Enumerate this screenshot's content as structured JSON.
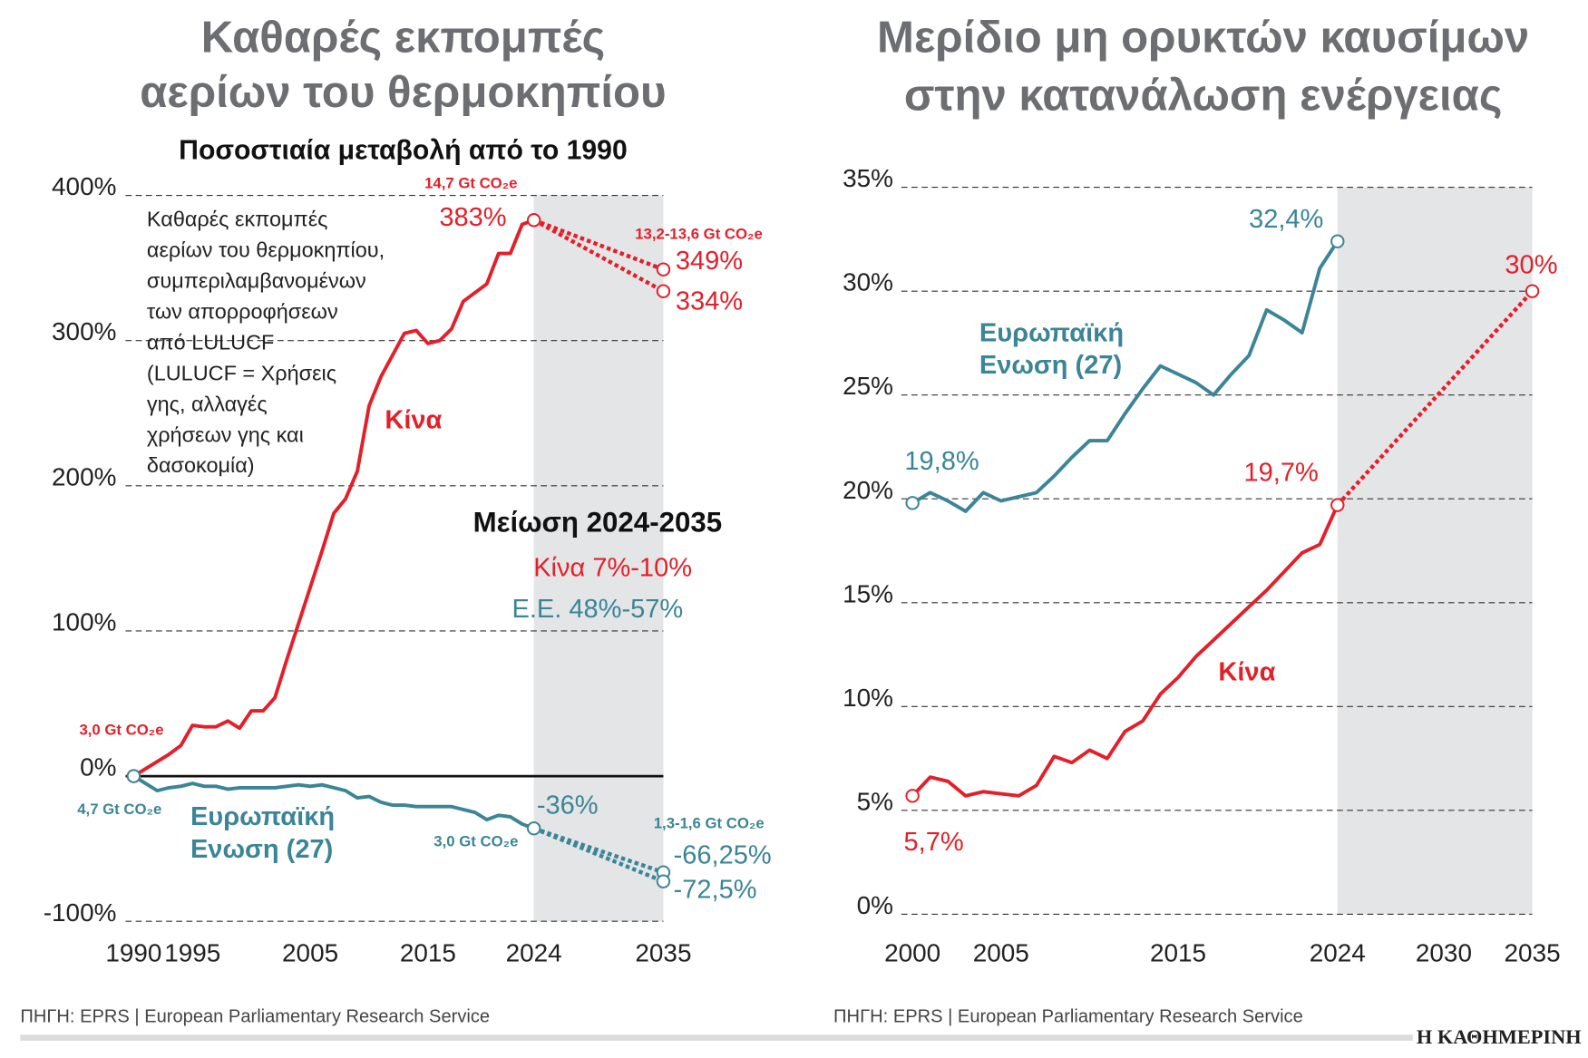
{
  "chart_data": [
    {
      "type": "line",
      "title": [
        "Καθαρές εκπομπές",
        "αερίων του θερμοκηπίου"
      ],
      "subtitle": "Ποσοστιαία μεταβολή από το 1990",
      "note": [
        "Καθαρές εκπομπές",
        "αερίων του θερμοκηπίου,",
        "συμπεριλαμβανομένων",
        "των απορροφήσεων",
        "από LULUCF",
        "(LULUCF = Χρήσεις",
        "γης, αλλαγές",
        "χρήσεων γης και",
        "δασοκομία)"
      ],
      "annotations": [
        {
          "text": "14,7 Gt CO₂e",
          "color": "#e3202a"
        },
        {
          "text": "13,2-13,6 Gt CO₂e",
          "color": "#e3202a"
        },
        {
          "text": "3,0 Gt CO₂e",
          "color": "#e3202a"
        },
        {
          "text": "4,7 Gt CO₂e",
          "color": "#3b8596"
        },
        {
          "text": "3,0 Gt CO₂e",
          "color": "#3b8596"
        },
        {
          "text": "1,3-1,6 Gt CO₂e",
          "color": "#3b8596"
        },
        {
          "text": "Μείωση 2024-2035",
          "color": "#111111"
        },
        {
          "text": "Κίνα 7%-10%",
          "color": "#e3202a"
        },
        {
          "text": "Ε.Ε. 48%-57%",
          "color": "#3b8596"
        }
      ],
      "source": "ΠΗΓΗ: EPRS | European Parliamentary Research Service",
      "xlim": [
        1990,
        2035
      ],
      "xticks": [
        1990,
        1995,
        2005,
        2015,
        2024,
        2035
      ],
      "ylim": [
        -100,
        400
      ],
      "yticks": [
        {
          "value": -100,
          "label": "-100%"
        },
        {
          "value": 0,
          "label": "0%"
        },
        {
          "value": 100,
          "label": "100%"
        },
        {
          "value": 200,
          "label": "200%"
        },
        {
          "value": 300,
          "label": "300%"
        },
        {
          "value": 400,
          "label": "400%"
        }
      ],
      "grid": true,
      "zero_line": true,
      "shade": [
        2024,
        2035
      ],
      "series": [
        {
          "name": "Κίνα",
          "color": "#e3202a",
          "x": [
            1990,
            1991,
            1992,
            1993,
            1994,
            1995,
            1996,
            1997,
            1998,
            1999,
            2000,
            2001,
            2002,
            2003,
            2004,
            2005,
            2006,
            2007,
            2008,
            2009,
            2010,
            2011,
            2012,
            2013,
            2014,
            2015,
            2016,
            2017,
            2018,
            2019,
            2020,
            2021,
            2022,
            2023,
            2024
          ],
          "values": [
            0,
            5,
            10,
            15,
            21,
            35,
            34,
            34,
            38,
            33,
            45,
            45,
            54,
            80,
            105,
            130,
            155,
            181,
            191,
            210,
            255,
            275,
            290,
            305,
            307,
            298,
            300,
            308,
            327,
            333,
            339,
            360,
            360,
            380,
            383
          ],
          "value_labels": [
            null,
            null,
            null,
            null,
            null,
            null,
            null,
            null,
            null,
            null,
            null,
            null,
            null,
            null,
            null,
            null,
            null,
            null,
            null,
            null,
            null,
            null,
            null,
            null,
            null,
            null,
            null,
            null,
            null,
            null,
            null,
            null,
            null,
            null,
            "383%"
          ]
        },
        {
          "name": "Ευρωπαϊκή Ενωση (27)",
          "color": "#3b8596",
          "x": [
            1990,
            1991,
            1992,
            1993,
            1994,
            1995,
            1996,
            1997,
            1998,
            1999,
            2000,
            2001,
            2002,
            2003,
            2004,
            2005,
            2006,
            2007,
            2008,
            2009,
            2010,
            2011,
            2012,
            2013,
            2014,
            2015,
            2016,
            2017,
            2018,
            2019,
            2020,
            2021,
            2022,
            2023,
            2024
          ],
          "values": [
            0,
            -5,
            -10,
            -8,
            -7,
            -5,
            -7,
            -7,
            -9,
            -8,
            -8,
            -8,
            -8,
            -7,
            -6,
            -7,
            -6,
            -8,
            -10,
            -15,
            -14,
            -18,
            -20,
            -20,
            -21,
            -21,
            -21,
            -21,
            -23,
            -25,
            -30,
            -27,
            -28,
            -33,
            -36
          ],
          "value_labels": [
            null,
            null,
            null,
            null,
            null,
            null,
            null,
            null,
            null,
            null,
            null,
            null,
            null,
            null,
            null,
            null,
            null,
            null,
            null,
            null,
            null,
            null,
            null,
            null,
            null,
            null,
            null,
            null,
            null,
            null,
            null,
            null,
            null,
            null,
            "-36%"
          ]
        },
        {
          "color": "#e3202a",
          "dashed": true,
          "x": [
            2024,
            2035
          ],
          "values": [
            383,
            349
          ],
          "value_labels": [
            null,
            "349%"
          ]
        },
        {
          "color": "#e3202a",
          "dashed": true,
          "x": [
            2024,
            2035
          ],
          "values": [
            383,
            334
          ],
          "value_labels": [
            null,
            "334%"
          ]
        },
        {
          "color": "#3b8596",
          "dashed": true,
          "x": [
            2024,
            2035
          ],
          "values": [
            -36,
            -66.25
          ],
          "value_labels": [
            null,
            "-66,25%"
          ]
        },
        {
          "color": "#3b8596",
          "dashed": true,
          "x": [
            2024,
            2035
          ],
          "values": [
            -36,
            -72.5
          ],
          "value_labels": [
            null,
            "-72,5%"
          ]
        }
      ]
    },
    {
      "type": "line",
      "title": [
        "Μερίδιο μη ορυκτών καυσίμων",
        "στην κατανάλωση ενέργειας"
      ],
      "source": "ΠΗΓΗ: EPRS | European Parliamentary Research Service",
      "xlim": [
        2000,
        2035
      ],
      "xticks": [
        2000,
        2005,
        2015,
        2024,
        2030,
        2035
      ],
      "ylim": [
        0,
        35
      ],
      "yticks": [
        {
          "value": 0,
          "label": "0%"
        },
        {
          "value": 5,
          "label": "5%"
        },
        {
          "value": 10,
          "label": "10%"
        },
        {
          "value": 15,
          "label": "15%"
        },
        {
          "value": 20,
          "label": "20%"
        },
        {
          "value": 25,
          "label": "25%"
        },
        {
          "value": 30,
          "label": "30%"
        },
        {
          "value": 35,
          "label": "35%"
        }
      ],
      "grid": true,
      "shade": [
        2024,
        2035
      ],
      "series": [
        {
          "name": "Ευρωπαϊκή Ενωση (27)",
          "color": "#3b8596",
          "x": [
            2000,
            2001,
            2002,
            2003,
            2004,
            2005,
            2006,
            2007,
            2008,
            2009,
            2010,
            2011,
            2012,
            2013,
            2014,
            2015,
            2016,
            2017,
            2018,
            2019,
            2020,
            2021,
            2022,
            2023,
            2024
          ],
          "values": [
            19.8,
            20.3,
            19.9,
            19.4,
            20.3,
            19.9,
            20.1,
            20.3,
            21.1,
            22.0,
            22.8,
            22.8,
            24.1,
            25.3,
            26.4,
            26.0,
            25.6,
            25.0,
            26.0,
            26.9,
            29.1,
            28.6,
            28.0,
            31.1,
            32.4
          ],
          "value_labels": [
            "19,8%",
            null,
            null,
            null,
            null,
            null,
            null,
            null,
            null,
            null,
            null,
            null,
            null,
            null,
            null,
            null,
            null,
            null,
            null,
            null,
            null,
            null,
            null,
            null,
            "32,4%"
          ]
        },
        {
          "name": "Κίνα",
          "color": "#e3202a",
          "x": [
            2000,
            2001,
            2002,
            2003,
            2004,
            2005,
            2006,
            2007,
            2008,
            2009,
            2010,
            2011,
            2012,
            2013,
            2014,
            2015,
            2016,
            2017,
            2018,
            2019,
            2020,
            2021,
            2022,
            2023,
            2024
          ],
          "values": [
            5.7,
            6.6,
            6.4,
            5.7,
            5.9,
            5.8,
            5.7,
            6.2,
            7.6,
            7.3,
            7.9,
            7.5,
            8.8,
            9.3,
            10.6,
            11.4,
            12.4,
            13.2,
            14.0,
            14.8,
            15.6,
            16.5,
            17.4,
            17.8,
            19.7
          ],
          "value_labels": [
            "5,7%",
            null,
            null,
            null,
            null,
            null,
            null,
            null,
            null,
            null,
            null,
            null,
            null,
            null,
            null,
            null,
            null,
            null,
            null,
            null,
            null,
            null,
            null,
            null,
            "19,7%"
          ]
        },
        {
          "color": "#e3202a",
          "dashed": true,
          "x": [
            2024,
            2035
          ],
          "values": [
            19.7,
            30
          ],
          "value_labels": [
            null,
            "30%"
          ]
        }
      ]
    }
  ],
  "publisher": "Η ΚΑΘΗΜΕΡΙΝΗ"
}
